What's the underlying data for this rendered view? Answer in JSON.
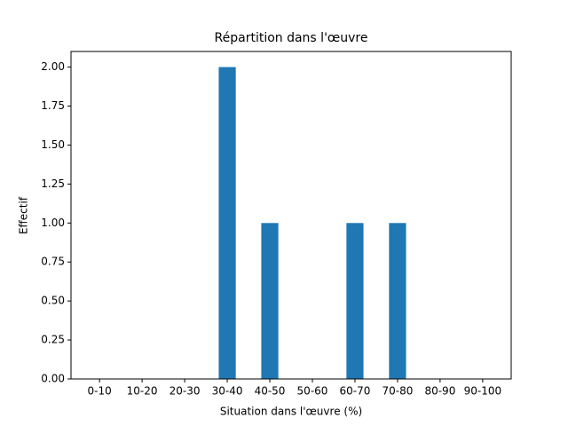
{
  "chart_data": {
    "type": "bar",
    "title": "Répartition dans l'œuvre",
    "xlabel": "Situation dans l'œuvre (%)",
    "ylabel": "Effectif",
    "categories": [
      "0-10",
      "10-20",
      "20-30",
      "30-40",
      "40-50",
      "50-60",
      "60-70",
      "70-80",
      "80-90",
      "90-100"
    ],
    "values": [
      0,
      0,
      0,
      2,
      1,
      0,
      1,
      1,
      0,
      0
    ],
    "color": "#1f77b4",
    "ylim": [
      0,
      2.1
    ],
    "yticks": [
      {
        "value": 0,
        "label": "0.00"
      },
      {
        "value": 0.25,
        "label": "0.25"
      },
      {
        "value": 0.5,
        "label": "0.50"
      },
      {
        "value": 0.75,
        "label": "0.75"
      },
      {
        "value": 1,
        "label": "1.00"
      },
      {
        "value": 1.25,
        "label": "1.25"
      },
      {
        "value": 1.5,
        "label": "1.50"
      },
      {
        "value": 1.75,
        "label": "1.75"
      },
      {
        "value": 2,
        "label": "2.00"
      }
    ],
    "grid": false
  }
}
